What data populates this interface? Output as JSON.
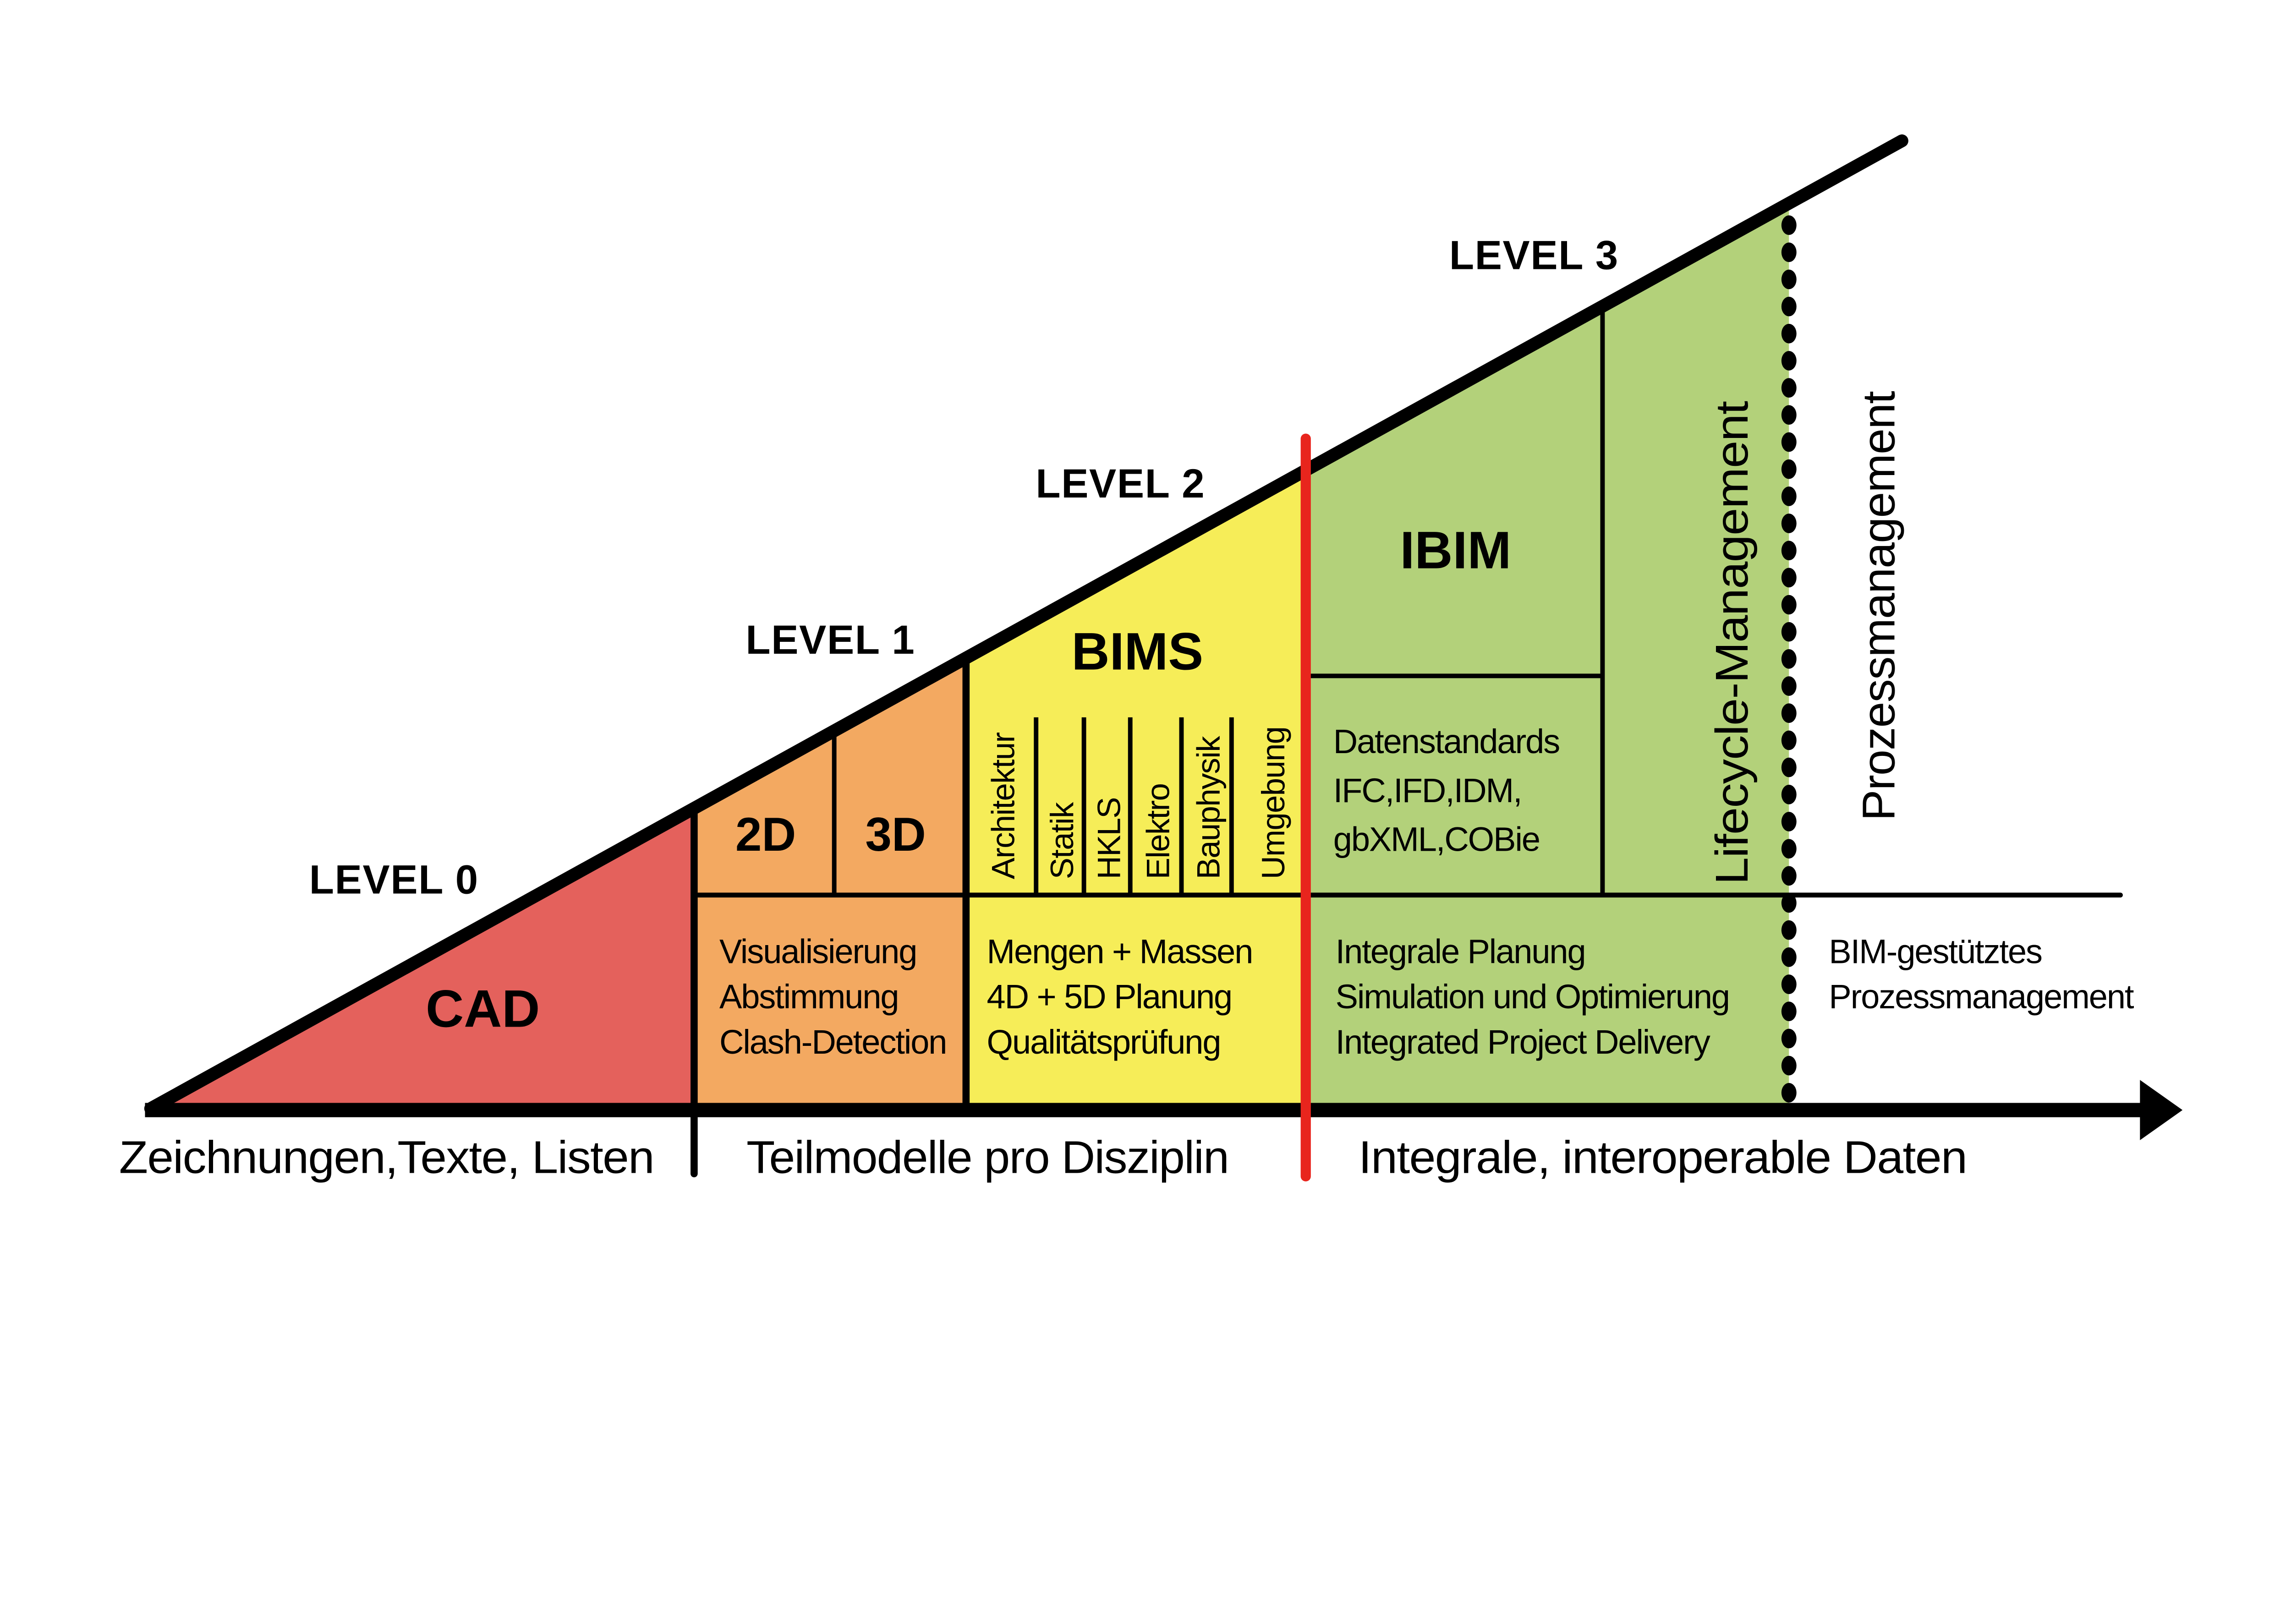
{
  "colors": {
    "level0_fill": "#e4615c",
    "level1_fill": "#f3a961",
    "level2_fill": "#f6ed58",
    "level3_fill": "#b3d17a",
    "divider_red": "#e8251d",
    "line_black": "#000000"
  },
  "levels": {
    "level0": {
      "label": "LEVEL 0",
      "title": "CAD"
    },
    "level1": {
      "label": "LEVEL 1",
      "cell_2d": "2D",
      "cell_3d": "3D",
      "features": [
        "Visualisierung",
        "Abstimmung",
        "Clash-Detection"
      ]
    },
    "level2": {
      "label": "LEVEL 2",
      "title": "BIMS",
      "disciplines": [
        "Architektur",
        "Statik",
        "HKLS",
        "Elektro",
        "Bauphysik",
        "Umgebung"
      ],
      "features": [
        "Mengen + Massen",
        "4D + 5D Planung",
        "Qualitätsprüfung"
      ]
    },
    "level3": {
      "label": "LEVEL 3",
      "title": "IBIM",
      "standards_lines": [
        "Datenstandards",
        "IFC,IFD,IDM,",
        "gbXML,COBie"
      ],
      "lifecycle_label": "Lifecycle-Management",
      "features": [
        "Integrale Planung",
        "Simulation und Optimierung",
        "Integrated Project Delivery"
      ]
    }
  },
  "process_column": {
    "vertical_label": "Prozessmanagement",
    "features": [
      "BIM-gestütztes",
      "Prozessmanagement"
    ]
  },
  "x_axis": {
    "segment_labels": [
      "Zeichnungen,Texte, Listen",
      "Teilmodelle pro Disziplin",
      "Integrale, interoperable Daten"
    ]
  }
}
